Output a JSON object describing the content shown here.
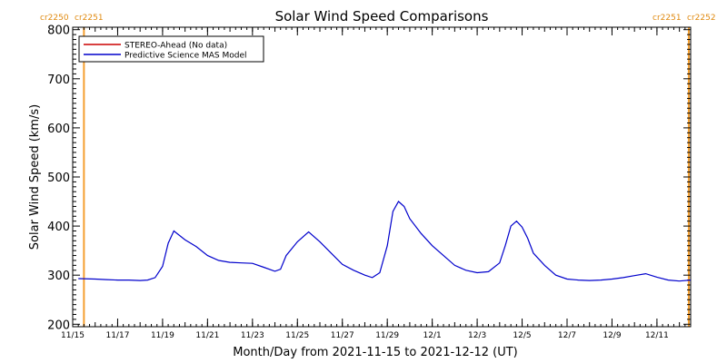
{
  "colors": {
    "axis": "#000000",
    "model_line": "#0000cc",
    "stereo_line": "#cc0000",
    "carrington_line": "#f5a030",
    "carrington_text": "#e08a10"
  },
  "chart_data": {
    "type": "line",
    "title": "Solar Wind Speed Comparisons",
    "xlabel": "Month/Day from 2021-11-15 to 2021-12-12 (UT)",
    "ylabel": "Solar Wind Speed (km/s)",
    "xlim": [
      "2021-11-15",
      "2021-12-12 12:00"
    ],
    "ylim": [
      195,
      805
    ],
    "x_tick_labels": [
      "11/15",
      "11/17",
      "11/19",
      "11/21",
      "11/23",
      "11/25",
      "11/27",
      "11/29",
      "12/1",
      "12/3",
      "12/5",
      "12/7",
      "12/9",
      "12/11"
    ],
    "x_tick_dates": [
      "2021-11-15",
      "2021-11-17",
      "2021-11-19",
      "2021-11-21",
      "2021-11-23",
      "2021-11-25",
      "2021-11-27",
      "2021-11-29",
      "2021-12-01",
      "2021-12-03",
      "2021-12-05",
      "2021-12-07",
      "2021-12-09",
      "2021-12-11"
    ],
    "y_ticks": [
      200,
      300,
      400,
      500,
      600,
      700,
      800
    ],
    "grid": false,
    "legend_position": "top-left",
    "legend": [
      {
        "label": "STEREO-Ahead (No data)",
        "color": "#cc0000"
      },
      {
        "label": "Predictive Science MAS Model",
        "color": "#0000cc"
      }
    ],
    "carrington_markers": [
      {
        "date": "2021-11-15 12:00",
        "left_label": "cr2250",
        "right_label": "cr2251",
        "side": "left"
      },
      {
        "date": "2021-12-12 10:00",
        "left_label": "cr2251",
        "right_label": "cr2252",
        "side": "right"
      }
    ],
    "series": [
      {
        "name": "Predictive Science MAS Model",
        "color": "#0000cc",
        "x": [
          "2021-11-15 06:00",
          "2021-11-16 00:00",
          "2021-11-16 12:00",
          "2021-11-17 00:00",
          "2021-11-17 12:00",
          "2021-11-18 00:00",
          "2021-11-18 08:00",
          "2021-11-18 16:00",
          "2021-11-19 00:00",
          "2021-11-19 06:00",
          "2021-11-19 12:00",
          "2021-11-20 00:00",
          "2021-11-20 12:00",
          "2021-11-21 00:00",
          "2021-11-21 12:00",
          "2021-11-22 00:00",
          "2021-11-22 12:00",
          "2021-11-23 00:00",
          "2021-11-23 12:00",
          "2021-11-24 00:00",
          "2021-11-24 06:00",
          "2021-11-24 12:00",
          "2021-11-25 00:00",
          "2021-11-25 12:00",
          "2021-11-26 00:00",
          "2021-11-26 12:00",
          "2021-11-27 00:00",
          "2021-11-27 12:00",
          "2021-11-28 00:00",
          "2021-11-28 08:00",
          "2021-11-28 16:00",
          "2021-11-29 00:00",
          "2021-11-29 06:00",
          "2021-11-29 12:00",
          "2021-11-29 18:00",
          "2021-11-30 00:00",
          "2021-11-30 12:00",
          "2021-12-01 00:00",
          "2021-12-01 12:00",
          "2021-12-02 00:00",
          "2021-12-02 12:00",
          "2021-12-03 00:00",
          "2021-12-03 12:00",
          "2021-12-04 00:00",
          "2021-12-04 06:00",
          "2021-12-04 12:00",
          "2021-12-04 18:00",
          "2021-12-05 00:00",
          "2021-12-05 06:00",
          "2021-12-05 12:00",
          "2021-12-06 00:00",
          "2021-12-06 12:00",
          "2021-12-07 00:00",
          "2021-12-07 12:00",
          "2021-12-08 00:00",
          "2021-12-08 12:00",
          "2021-12-09 00:00",
          "2021-12-09 12:00",
          "2021-12-10 00:00",
          "2021-12-10 12:00",
          "2021-12-11 00:00",
          "2021-12-11 12:00",
          "2021-12-12 00:00",
          "2021-12-12 12:00"
        ],
        "y": [
          293,
          292,
          291,
          290,
          290,
          289,
          290,
          295,
          318,
          365,
          390,
          372,
          358,
          340,
          330,
          326,
          325,
          324,
          316,
          308,
          312,
          340,
          368,
          388,
          368,
          345,
          322,
          310,
          300,
          295,
          305,
          360,
          430,
          450,
          440,
          415,
          385,
          360,
          340,
          320,
          310,
          305,
          307,
          325,
          360,
          400,
          410,
          398,
          375,
          345,
          320,
          300,
          292,
          290,
          289,
          290,
          292,
          295,
          299,
          303,
          296,
          290,
          288,
          290
        ]
      }
    ]
  }
}
